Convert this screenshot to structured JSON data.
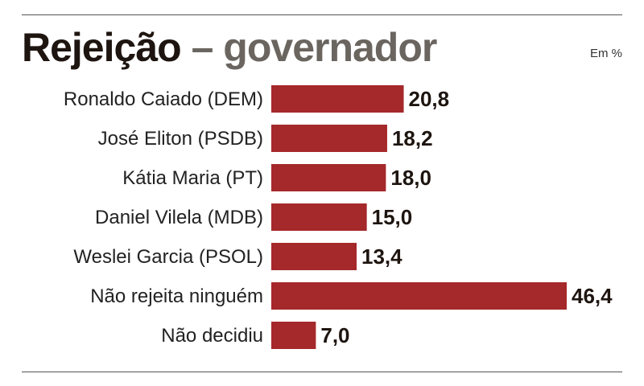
{
  "chart_data": {
    "type": "bar",
    "orientation": "horizontal",
    "title": "Rejeição",
    "subtitle": "governador",
    "separator": "–",
    "unit_label": "Em %",
    "categories": [
      "Ronaldo Caiado (DEM)",
      "José Eliton (PSDB)",
      "Kátia Maria (PT)",
      "Daniel Vilela (MDB)",
      "Weslei Garcia (PSOL)",
      "Não rejeita ninguém",
      "Não decidiu"
    ],
    "values": [
      20.8,
      18.2,
      18.0,
      15.0,
      13.4,
      46.4,
      7.0
    ],
    "value_labels": [
      "20,8",
      "18,2",
      "18,0",
      "15,0",
      "13,4",
      "46,4",
      "7,0"
    ],
    "xlim": [
      0,
      46.4
    ],
    "grid": false,
    "colors": {
      "bar": "#a5282a",
      "title": "#1e1510",
      "subtitle": "#6b6560"
    }
  }
}
